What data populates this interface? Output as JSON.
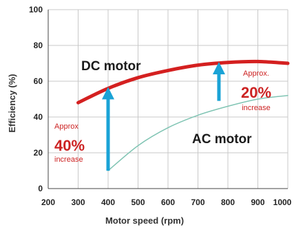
{
  "chart_data": {
    "type": "line",
    "xlabel": "Motor speed (rpm)",
    "ylabel": "Efficiency (%)",
    "xlim": [
      200,
      1000
    ],
    "ylim": [
      0,
      100
    ],
    "x_ticks": [
      "200",
      "300",
      "400",
      "500",
      "600",
      "700",
      "800",
      "900",
      "1000"
    ],
    "y_ticks": [
      "0",
      "20",
      "40",
      "60",
      "80",
      "100"
    ],
    "grid": true,
    "series": [
      {
        "name": "DC motor",
        "color": "#d42020",
        "x": [
          300,
          400,
          500,
          600,
          700,
          800,
          900,
          1000
        ],
        "y": [
          48,
          56,
          62,
          66,
          69,
          70.5,
          71,
          70
        ]
      },
      {
        "name": "AC motor",
        "color": "#7fc4b3",
        "x": [
          400,
          500,
          600,
          700,
          800,
          900,
          1000
        ],
        "y": [
          10,
          24,
          34,
          41,
          46,
          50,
          52
        ]
      }
    ],
    "annotations": [
      {
        "lines": [
          "Approx",
          "40%",
          "increase"
        ],
        "x": 400,
        "from": 10,
        "to": 56,
        "arrow_color": "#1aa3d6"
      },
      {
        "lines": [
          "Approx.",
          "20%",
          "increase"
        ],
        "x": 770,
        "from": 49,
        "to": 70,
        "arrow_color": "#1aa3d6"
      }
    ]
  }
}
